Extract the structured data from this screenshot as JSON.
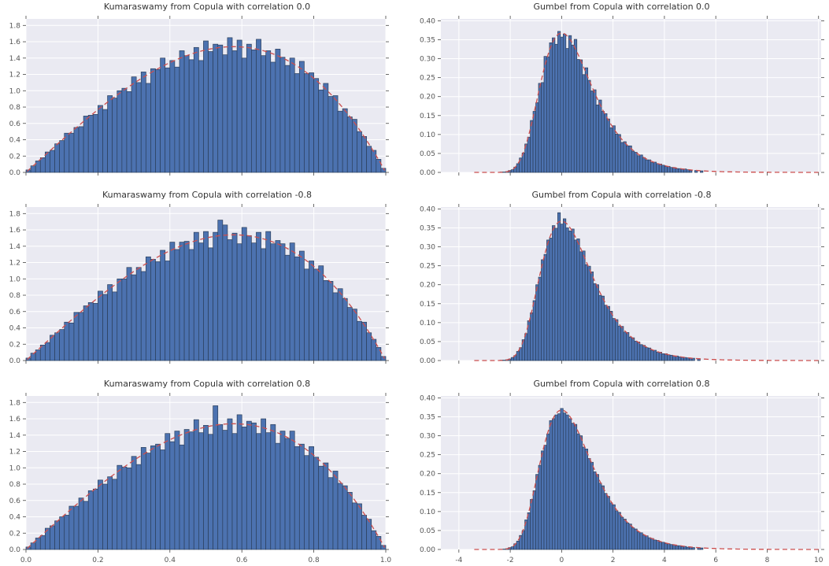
{
  "figure": {
    "colors": {
      "panel_bg": "#eaeaf2",
      "grid": "#ffffff",
      "bar_fill": "#4c72b0",
      "bar_edge": "#2b3f5c",
      "curve": "#cc4f4f",
      "tick": "#444444",
      "label": "#555555",
      "title": "#333333"
    }
  },
  "chart_data": [
    {
      "id": "kumaraswamy-corr-0.0",
      "type": "bar",
      "title": "Kumaraswamy from Copula with correlation 0.0",
      "distribution": "Kumaraswamy(a=2, b=2) histogram with pdf overlay",
      "col": "left",
      "xlim": [
        0,
        1
      ],
      "ylim": [
        0,
        1.88
      ],
      "x_tick_values": [
        0,
        0.2,
        0.4,
        0.6,
        0.8,
        1.0
      ],
      "x_tick_labels": [
        "0.0",
        "0.2",
        "0.4",
        "0.6",
        "0.8",
        "1.0"
      ],
      "y_tick_values": [
        0,
        0.2,
        0.4,
        0.6,
        0.8,
        1.0,
        1.2,
        1.4,
        1.6,
        1.8
      ],
      "y_tick_labels": [
        "0.0",
        "0.2",
        "0.4",
        "0.6",
        "0.8",
        "1.0",
        "1.2",
        "1.4",
        "1.6",
        "1.8"
      ],
      "show_x_tick_labels": false,
      "bins": {
        "start": 0,
        "width": 0.0133333,
        "count": 75
      },
      "heights": [
        0.03,
        0.08,
        0.14,
        0.18,
        0.25,
        0.27,
        0.35,
        0.39,
        0.48,
        0.48,
        0.55,
        0.56,
        0.69,
        0.7,
        0.71,
        0.82,
        0.77,
        0.94,
        0.91,
        1.0,
        1.03,
        0.99,
        1.17,
        1.1,
        1.23,
        1.09,
        1.27,
        1.26,
        1.4,
        1.28,
        1.37,
        1.29,
        1.49,
        1.43,
        1.38,
        1.53,
        1.37,
        1.61,
        1.48,
        1.57,
        1.56,
        1.44,
        1.65,
        1.49,
        1.62,
        1.4,
        1.57,
        1.5,
        1.63,
        1.43,
        1.49,
        1.35,
        1.51,
        1.41,
        1.31,
        1.4,
        1.21,
        1.36,
        1.21,
        1.22,
        1.15,
        1.01,
        1.09,
        0.93,
        0.94,
        0.75,
        0.78,
        0.68,
        0.65,
        0.5,
        0.44,
        0.32,
        0.27,
        0.16,
        0.05
      ],
      "curve": {
        "fn": "kumaraswamy",
        "a": 2,
        "b": 2,
        "range": [
          0.003,
          0.997
        ]
      }
    },
    {
      "id": "gumbel-corr-0.0",
      "type": "bar",
      "title": "Gumbel from Copula with correlation 0.0",
      "distribution": "Standard Gumbel histogram with pdf overlay",
      "col": "right",
      "xlim": [
        -4.7,
        10.1
      ],
      "ylim": [
        0,
        0.405
      ],
      "x_tick_values": [
        -4,
        -2,
        0,
        2,
        4,
        6,
        8,
        10
      ],
      "x_tick_labels": [
        "-4",
        "-2",
        "0",
        "2",
        "4",
        "6",
        "8",
        "10"
      ],
      "y_tick_values": [
        0,
        0.05,
        0.1,
        0.15,
        0.2,
        0.25,
        0.3,
        0.35,
        0.4
      ],
      "y_tick_labels": [
        "0.00",
        "0.05",
        "0.10",
        "0.15",
        "0.20",
        "0.25",
        "0.30",
        "0.35",
        "0.40"
      ],
      "show_x_tick_labels": false,
      "bins": {
        "start": -2.5,
        "width": 0.1066667,
        "count": 75
      },
      "heights": [
        0,
        0.001,
        0.001,
        0.002,
        0.005,
        0.007,
        0.014,
        0.023,
        0.038,
        0.051,
        0.075,
        0.093,
        0.137,
        0.161,
        0.184,
        0.235,
        0.237,
        0.306,
        0.305,
        0.342,
        0.355,
        0.338,
        0.372,
        0.357,
        0.365,
        0.327,
        0.361,
        0.336,
        0.351,
        0.298,
        0.297,
        0.258,
        0.276,
        0.243,
        0.215,
        0.218,
        0.178,
        0.191,
        0.161,
        0.155,
        0.141,
        0.118,
        0.123,
        0.101,
        0.1,
        0.079,
        0.081,
        0.07,
        0.07,
        0.056,
        0.053,
        0.044,
        0.046,
        0.039,
        0.033,
        0.033,
        0.026,
        0.027,
        0.023,
        0.022,
        0.019,
        0.016,
        0.016,
        0.013,
        0.013,
        0.01,
        0.01,
        0.009,
        0.009,
        0.007,
        0.005,
        0,
        0.005,
        0,
        0.004
      ],
      "curve": {
        "fn": "gumbel",
        "range": [
          -3.4,
          10.05
        ]
      }
    },
    {
      "id": "kumaraswamy-corr--0.8",
      "type": "bar",
      "title": "Kumaraswamy from Copula with correlation -0.8",
      "distribution": "Kumaraswamy(a=2, b=2) histogram with pdf overlay",
      "col": "left",
      "xlim": [
        0,
        1
      ],
      "ylim": [
        0,
        1.88
      ],
      "x_tick_values": [
        0,
        0.2,
        0.4,
        0.6,
        0.8,
        1.0
      ],
      "x_tick_labels": [
        "0.0",
        "0.2",
        "0.4",
        "0.6",
        "0.8",
        "1.0"
      ],
      "y_tick_values": [
        0,
        0.2,
        0.4,
        0.6,
        0.8,
        1.0,
        1.2,
        1.4,
        1.6,
        1.8
      ],
      "y_tick_labels": [
        "0.0",
        "0.2",
        "0.4",
        "0.6",
        "0.8",
        "1.0",
        "1.2",
        "1.4",
        "1.6",
        "1.8"
      ],
      "show_x_tick_labels": false,
      "bins": {
        "start": 0,
        "width": 0.0133333,
        "count": 75
      },
      "heights": [
        0.03,
        0.09,
        0.13,
        0.19,
        0.22,
        0.31,
        0.34,
        0.38,
        0.47,
        0.46,
        0.59,
        0.59,
        0.67,
        0.71,
        0.7,
        0.85,
        0.81,
        0.93,
        0.84,
        1.0,
        1.0,
        1.14,
        1.05,
        1.14,
        1.09,
        1.27,
        1.24,
        1.21,
        1.35,
        1.22,
        1.45,
        1.36,
        1.45,
        1.46,
        1.36,
        1.57,
        1.44,
        1.58,
        1.38,
        1.57,
        1.72,
        1.66,
        1.48,
        1.56,
        1.43,
        1.63,
        1.53,
        1.44,
        1.57,
        1.37,
        1.58,
        1.43,
        1.47,
        1.43,
        1.29,
        1.44,
        1.27,
        1.34,
        1.12,
        1.22,
        1.12,
        1.16,
        0.98,
        0.97,
        0.83,
        0.88,
        0.76,
        0.65,
        0.63,
        0.48,
        0.47,
        0.34,
        0.26,
        0.16,
        0.05
      ],
      "curve": {
        "fn": "kumaraswamy",
        "a": 2,
        "b": 2,
        "range": [
          0.003,
          0.997
        ]
      }
    },
    {
      "id": "gumbel-corr--0.8",
      "type": "bar",
      "title": "Gumbel from Copula with correlation -0.8",
      "distribution": "Standard Gumbel histogram with pdf overlay",
      "col": "right",
      "xlim": [
        -4.7,
        10.1
      ],
      "ylim": [
        0,
        0.405
      ],
      "x_tick_values": [
        -4,
        -2,
        0,
        2,
        4,
        6,
        8,
        10
      ],
      "x_tick_labels": [
        "-4",
        "-2",
        "0",
        "2",
        "4",
        "6",
        "8",
        "10"
      ],
      "y_tick_values": [
        0,
        0.05,
        0.1,
        0.15,
        0.2,
        0.25,
        0.3,
        0.35,
        0.4
      ],
      "y_tick_labels": [
        "0.00",
        "0.05",
        "0.10",
        "0.15",
        "0.20",
        "0.25",
        "0.30",
        "0.35",
        "0.40"
      ],
      "show_x_tick_labels": false,
      "bins": {
        "start": -2.5,
        "width": 0.1066667,
        "count": 75
      },
      "heights": [
        0,
        0.001,
        0.001,
        0.002,
        0.004,
        0.008,
        0.013,
        0.024,
        0.034,
        0.055,
        0.071,
        0.105,
        0.126,
        0.158,
        0.2,
        0.22,
        0.266,
        0.28,
        0.318,
        0.323,
        0.356,
        0.349,
        0.39,
        0.36,
        0.374,
        0.35,
        0.342,
        0.347,
        0.318,
        0.321,
        0.287,
        0.289,
        0.253,
        0.249,
        0.234,
        0.203,
        0.2,
        0.172,
        0.17,
        0.146,
        0.143,
        0.13,
        0.111,
        0.108,
        0.091,
        0.09,
        0.075,
        0.074,
        0.062,
        0.06,
        0.051,
        0.049,
        0.042,
        0.04,
        0.034,
        0.033,
        0.027,
        0.027,
        0.022,
        0.022,
        0.018,
        0.018,
        0.015,
        0.014,
        0.012,
        0.012,
        0.01,
        0.009,
        0.008,
        0.007,
        0.006,
        0.006,
        0,
        0.005,
        0
      ],
      "curve": {
        "fn": "gumbel",
        "range": [
          -3.4,
          10.05
        ]
      }
    },
    {
      "id": "kumaraswamy-corr-0.8",
      "type": "bar",
      "title": "Kumaraswamy from Copula with correlation 0.8",
      "distribution": "Kumaraswamy(a=2, b=2) histogram with pdf overlay",
      "col": "left",
      "xlim": [
        0,
        1
      ],
      "ylim": [
        0,
        1.88
      ],
      "x_tick_values": [
        0,
        0.2,
        0.4,
        0.6,
        0.8,
        1.0
      ],
      "x_tick_labels": [
        "0.0",
        "0.2",
        "0.4",
        "0.6",
        "0.8",
        "1.0"
      ],
      "y_tick_values": [
        0,
        0.2,
        0.4,
        0.6,
        0.8,
        1.0,
        1.2,
        1.4,
        1.6,
        1.8
      ],
      "y_tick_labels": [
        "0.0",
        "0.2",
        "0.4",
        "0.6",
        "0.8",
        "1.0",
        "1.2",
        "1.4",
        "1.6",
        "1.8"
      ],
      "show_x_tick_labels": true,
      "bins": {
        "start": 0,
        "width": 0.0133333,
        "count": 75
      },
      "heights": [
        0.03,
        0.08,
        0.14,
        0.17,
        0.26,
        0.29,
        0.35,
        0.4,
        0.42,
        0.53,
        0.53,
        0.63,
        0.59,
        0.72,
        0.74,
        0.85,
        0.8,
        0.89,
        0.86,
        1.03,
        1.01,
        1.0,
        1.14,
        1.04,
        1.25,
        1.18,
        1.27,
        1.29,
        1.22,
        1.42,
        1.32,
        1.45,
        1.28,
        1.47,
        1.44,
        1.59,
        1.43,
        1.52,
        1.41,
        1.76,
        1.53,
        1.46,
        1.6,
        1.42,
        1.65,
        1.5,
        1.57,
        1.55,
        1.42,
        1.6,
        1.43,
        1.53,
        1.3,
        1.45,
        1.36,
        1.45,
        1.26,
        1.29,
        1.15,
        1.26,
        1.13,
        1.02,
        1.06,
        0.88,
        0.96,
        0.81,
        0.78,
        0.7,
        0.57,
        0.56,
        0.42,
        0.37,
        0.23,
        0.16,
        0.05
      ],
      "curve": {
        "fn": "kumaraswamy",
        "a": 2,
        "b": 2,
        "range": [
          0.003,
          0.997
        ]
      }
    },
    {
      "id": "gumbel-corr-0.8",
      "type": "bar",
      "title": "Gumbel from Copula with correlation 0.8",
      "distribution": "Standard Gumbel histogram with pdf overlay",
      "col": "right",
      "xlim": [
        -4.7,
        10.1
      ],
      "ylim": [
        0,
        0.405
      ],
      "x_tick_values": [
        -4,
        -2,
        0,
        2,
        4,
        6,
        8,
        10
      ],
      "x_tick_labels": [
        "-4",
        "-2",
        "0",
        "2",
        "4",
        "6",
        "8",
        "10"
      ],
      "y_tick_values": [
        0,
        0.05,
        0.1,
        0.15,
        0.2,
        0.25,
        0.3,
        0.35,
        0.4
      ],
      "y_tick_labels": [
        "0.00",
        "0.05",
        "0.10",
        "0.15",
        "0.20",
        "0.25",
        "0.30",
        "0.35",
        "0.40"
      ],
      "show_x_tick_labels": true,
      "bins": {
        "start": -2.5,
        "width": 0.1066667,
        "count": 75
      },
      "heights": [
        0,
        0,
        0.001,
        0.002,
        0.005,
        0.007,
        0.015,
        0.022,
        0.037,
        0.05,
        0.078,
        0.097,
        0.132,
        0.155,
        0.198,
        0.222,
        0.26,
        0.275,
        0.305,
        0.34,
        0.345,
        0.355,
        0.358,
        0.372,
        0.36,
        0.355,
        0.345,
        0.333,
        0.33,
        0.305,
        0.3,
        0.27,
        0.265,
        0.24,
        0.23,
        0.205,
        0.198,
        0.175,
        0.168,
        0.148,
        0.14,
        0.123,
        0.118,
        0.102,
        0.098,
        0.085,
        0.08,
        0.07,
        0.067,
        0.057,
        0.054,
        0.046,
        0.044,
        0.038,
        0.036,
        0.031,
        0.029,
        0.025,
        0.024,
        0.02,
        0.019,
        0.016,
        0.015,
        0.013,
        0.012,
        0.01,
        0.01,
        0.008,
        0.008,
        0.006,
        0.006,
        0.005,
        0,
        0.004,
        0.004
      ],
      "curve": {
        "fn": "gumbel",
        "range": [
          -3.4,
          10.05
        ]
      }
    }
  ]
}
